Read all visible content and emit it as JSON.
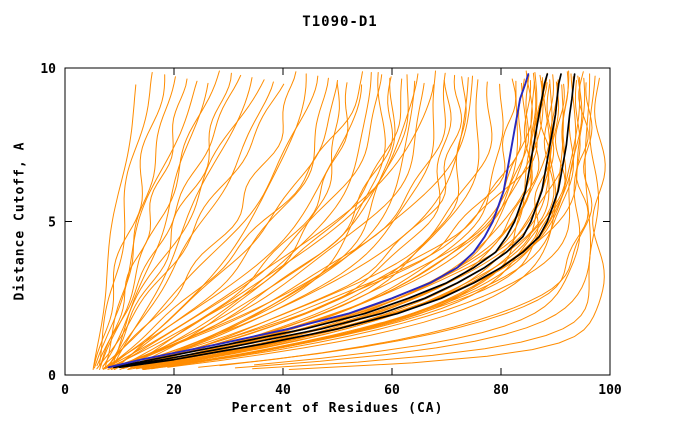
{
  "chart_data": {
    "type": "line",
    "title": "T1090-D1",
    "xlabel": "Percent of Residues (CA)",
    "ylabel": "Distance Cutoff, A",
    "xlim": [
      0,
      100
    ],
    "ylim": [
      0,
      10
    ],
    "x_ticks": [
      0,
      20,
      40,
      60,
      80,
      100
    ],
    "y_ticks": [
      0,
      5,
      10
    ],
    "grid": false,
    "legend": "none",
    "colors": {
      "models": "#ff8c00",
      "best_models": "#000000",
      "highlight_model": "#2929c0",
      "frame": "#000000",
      "background": "#ffffff"
    },
    "highlight_curve": {
      "name": "blue-model-curve",
      "points": [
        [
          0.25,
          8
        ],
        [
          0.5,
          14
        ],
        [
          1,
          28
        ],
        [
          1.5,
          41
        ],
        [
          2,
          52
        ],
        [
          2.5,
          60
        ],
        [
          3,
          67
        ],
        [
          3.5,
          72
        ],
        [
          4,
          75
        ],
        [
          4.5,
          77
        ],
        [
          5,
          78.5
        ],
        [
          5.5,
          79.5
        ],
        [
          6,
          80.5
        ],
        [
          6.5,
          81
        ],
        [
          7,
          81.5
        ],
        [
          7.5,
          82
        ],
        [
          8,
          82.5
        ],
        [
          8.5,
          83
        ],
        [
          9,
          83.5
        ],
        [
          9.5,
          84.5
        ],
        [
          9.8,
          85
        ]
      ]
    },
    "black_curves": [
      {
        "points": [
          [
            0.25,
            9
          ],
          [
            0.5,
            16
          ],
          [
            1,
            30
          ],
          [
            1.5,
            44
          ],
          [
            2,
            55
          ],
          [
            2.5,
            63
          ],
          [
            3,
            70
          ],
          [
            3.5,
            75
          ],
          [
            4,
            79
          ],
          [
            4.5,
            81
          ],
          [
            5,
            82.5
          ],
          [
            5.5,
            83.5
          ],
          [
            6,
            84.5
          ],
          [
            6.5,
            85
          ],
          [
            7,
            85.5
          ],
          [
            7.5,
            86
          ],
          [
            8,
            86.5
          ],
          [
            8.5,
            87
          ],
          [
            9,
            87.5
          ],
          [
            9.5,
            88
          ],
          [
            9.8,
            88.5
          ]
        ]
      },
      {
        "points": [
          [
            0.25,
            9
          ],
          [
            0.5,
            18
          ],
          [
            1,
            33
          ],
          [
            1.5,
            47
          ],
          [
            2,
            58
          ],
          [
            2.5,
            66
          ],
          [
            3,
            72
          ],
          [
            3.5,
            77
          ],
          [
            4,
            81
          ],
          [
            4.5,
            84
          ],
          [
            5,
            85.5
          ],
          [
            5.5,
            86.5
          ],
          [
            6,
            87.5
          ],
          [
            6.5,
            88
          ],
          [
            7,
            88.5
          ],
          [
            7.5,
            89
          ],
          [
            8,
            89.5
          ],
          [
            8.5,
            90
          ],
          [
            9,
            90.3
          ],
          [
            9.5,
            90.6
          ],
          [
            9.8,
            91
          ]
        ]
      },
      {
        "points": [
          [
            0.25,
            10
          ],
          [
            0.5,
            20
          ],
          [
            1,
            36
          ],
          [
            1.5,
            50
          ],
          [
            2,
            61
          ],
          [
            2.5,
            69
          ],
          [
            3,
            75
          ],
          [
            3.5,
            80
          ],
          [
            4,
            84
          ],
          [
            4.5,
            87
          ],
          [
            5,
            88.5
          ],
          [
            5.5,
            89.5
          ],
          [
            6,
            90.5
          ],
          [
            6.5,
            91
          ],
          [
            7,
            91.5
          ],
          [
            7.5,
            92
          ],
          [
            8,
            92.3
          ],
          [
            8.5,
            92.6
          ],
          [
            9,
            93
          ],
          [
            9.5,
            93.3
          ],
          [
            9.8,
            93.5
          ]
        ]
      }
    ],
    "orange_curves_spec_note": "each entry = [x0_percent_at_bottom, x_percent_at_top, curvature_exponent]",
    "orange_curves": [
      [
        5,
        13,
        1.0
      ],
      [
        6,
        16,
        0.9
      ],
      [
        5,
        18,
        1.1
      ],
      [
        7,
        20,
        1.0
      ],
      [
        6,
        22,
        1.2
      ],
      [
        5,
        24,
        0.95
      ],
      [
        8,
        26,
        1.1
      ],
      [
        6,
        28,
        1.0
      ],
      [
        7,
        30,
        1.3
      ],
      [
        5,
        32,
        1.05
      ],
      [
        8,
        34,
        1.15
      ],
      [
        6,
        36,
        1.0
      ],
      [
        7,
        38,
        1.2
      ],
      [
        5,
        40,
        1.1
      ],
      [
        6,
        42,
        1.6
      ],
      [
        8,
        44,
        1.8
      ],
      [
        5,
        46,
        1.5
      ],
      [
        7,
        48,
        2.0
      ],
      [
        6,
        50,
        1.7
      ],
      [
        9,
        52,
        2.2
      ],
      [
        5,
        54,
        1.9
      ],
      [
        8,
        56,
        2.4
      ],
      [
        6,
        58,
        2.0
      ],
      [
        7,
        60,
        2.6
      ],
      [
        5,
        62,
        2.1
      ],
      [
        9,
        64,
        2.8
      ],
      [
        6,
        66,
        2.3
      ],
      [
        8,
        68,
        3.0
      ],
      [
        5,
        70,
        2.5
      ],
      [
        7,
        72,
        3.2
      ],
      [
        6,
        74,
        2.7
      ],
      [
        9,
        76,
        3.4
      ],
      [
        5,
        78,
        2.9
      ],
      [
        8,
        80,
        3.6
      ],
      [
        6,
        55,
        1.4
      ],
      [
        7,
        65,
        1.9
      ],
      [
        5,
        75,
        2.2
      ],
      [
        8,
        60,
        3.3
      ],
      [
        6,
        70,
        3.8
      ],
      [
        9,
        50,
        2.9
      ],
      [
        5,
        68,
        1.6
      ],
      [
        7,
        58,
        3.6
      ],
      [
        6,
        63,
        2.4
      ],
      [
        8,
        73,
        4.0
      ],
      [
        6,
        82,
        3.0
      ],
      [
        8,
        83,
        3.5
      ],
      [
        5,
        84,
        4.0
      ],
      [
        7,
        85,
        3.2
      ],
      [
        6,
        86,
        4.4
      ],
      [
        9,
        87,
        3.8
      ],
      [
        5,
        88,
        4.8
      ],
      [
        8,
        89,
        3.4
      ],
      [
        6,
        90,
        4.2
      ],
      [
        7,
        91,
        5.0
      ],
      [
        5,
        92,
        3.6
      ],
      [
        8,
        93,
        4.6
      ],
      [
        6,
        94,
        5.4
      ],
      [
        7,
        95,
        4.0
      ],
      [
        5,
        85,
        5.8
      ],
      [
        8,
        88,
        5.2
      ],
      [
        6,
        91,
        6.0
      ],
      [
        9,
        86,
        4.4
      ],
      [
        5,
        89,
        5.6
      ],
      [
        7,
        93,
        4.8
      ],
      [
        6,
        84,
        2.8
      ],
      [
        8,
        87,
        3.1
      ],
      [
        5,
        90,
        3.9
      ],
      [
        7,
        92,
        4.3
      ],
      [
        6,
        88,
        2.6
      ],
      [
        9,
        85,
        3.3
      ],
      [
        5,
        94,
        4.1
      ],
      [
        8,
        90,
        4.9
      ],
      [
        6,
        86,
        3.7
      ],
      [
        7,
        89,
        4.5
      ],
      [
        8,
        95,
        8
      ],
      [
        10,
        96,
        12
      ],
      [
        9,
        97,
        16
      ],
      [
        12,
        98,
        22
      ],
      [
        10,
        94,
        10
      ],
      [
        11,
        96,
        7
      ]
    ]
  }
}
